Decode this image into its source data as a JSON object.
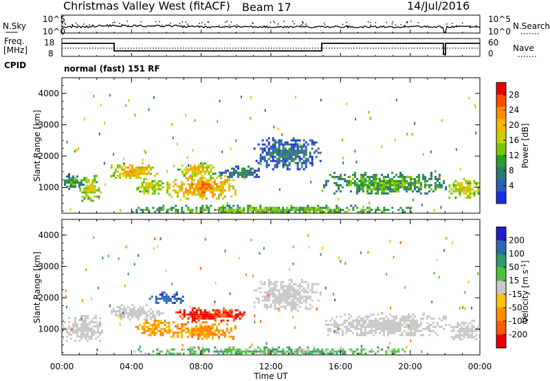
{
  "header": {
    "station": "Christmas Valley West (fitACF)",
    "beam": "Beam 17",
    "date": "14/Jul/2016"
  },
  "strip_labels": {
    "nsky": "N.Sky",
    "nsky_ticks": [
      "10^5",
      "10^0"
    ],
    "nsearch": "N.Search",
    "nsearch_ticks": [
      "10^5",
      "10^0"
    ],
    "freq_line1": "Freq.",
    "freq_line2": "[MHz]",
    "freq_ticks": [
      "18",
      "8"
    ],
    "nave": "Nave",
    "nave_ticks": [
      "60",
      "0"
    ],
    "cpid": "CPID",
    "cpid_value": "normal (fast) 151 RF"
  },
  "axes": {
    "ylabel": "Slant Range [km]",
    "xlabel": "Time UT",
    "yticks": [
      "4000",
      "3000",
      "2000",
      "1000"
    ],
    "xticks": [
      "00:00",
      "04:00",
      "08:00",
      "12:00",
      "16:00",
      "20:00",
      "00:00"
    ]
  },
  "colorbars": {
    "power": {
      "label": "Power [dB]",
      "ticks": [
        "28",
        "24",
        "20",
        "16",
        "12",
        "8",
        "4"
      ],
      "colors": [
        "#e80000",
        "#ff4b00",
        "#ff8c00",
        "#f7b400",
        "#c8d200",
        "#78c800",
        "#2a9c2a",
        "#2d7a6a",
        "#2f5cb4",
        "#1a2ee8"
      ]
    },
    "velocity": {
      "label": "Velocity [m s",
      "label_sup": "-1",
      "label_end": "]",
      "ticks": [
        "200",
        "100",
        "50",
        "15",
        "-15",
        "-50",
        "-100",
        "-200"
      ],
      "colors": [
        "#1f1fcc",
        "#2a6ab4",
        "#2f9a6a",
        "#4fc23a",
        "#c8c8c8",
        "#ffc000",
        "#ff8c00",
        "#ff5a00",
        "#e80000"
      ]
    }
  },
  "chart_data": [
    {
      "type": "heatmap",
      "title": "Power [dB]",
      "xlabel": "Time UT",
      "ylabel": "Slant Range [km]",
      "xlim_hours": [
        0,
        24
      ],
      "ylim_km": [
        180,
        4500
      ],
      "colorbar_range": [
        0,
        32
      ],
      "regions": [
        {
          "t0": 0.0,
          "t1": 1.2,
          "r0": 950,
          "r1": 1450,
          "value": 12
        },
        {
          "t0": 1.0,
          "t1": 2.3,
          "r0": 600,
          "r1": 1400,
          "value": 20
        },
        {
          "t0": 2.8,
          "t1": 5.5,
          "r0": 1300,
          "r1": 1800,
          "value": 24
        },
        {
          "t0": 4.2,
          "t1": 5.8,
          "r0": 800,
          "r1": 1300,
          "value": 20
        },
        {
          "t0": 6.0,
          "t1": 10.0,
          "r0": 650,
          "r1": 1400,
          "value": 26
        },
        {
          "t0": 6.5,
          "t1": 8.8,
          "r0": 1400,
          "r1": 1800,
          "value": 22
        },
        {
          "t0": 9.0,
          "t1": 11.5,
          "r0": 1300,
          "r1": 1700,
          "value": 10
        },
        {
          "t0": 11.0,
          "t1": 14.8,
          "r0": 1600,
          "r1": 2600,
          "value": 8
        },
        {
          "t0": 15.0,
          "t1": 22.0,
          "r0": 800,
          "r1": 1500,
          "value": 14
        },
        {
          "t0": 22.2,
          "t1": 24.0,
          "r0": 650,
          "r1": 1300,
          "value": 20
        },
        {
          "t0": 4.0,
          "t1": 20.0,
          "r0": 180,
          "r1": 450,
          "value": 16
        }
      ]
    },
    {
      "type": "heatmap",
      "title": "Velocity [m s-1]",
      "xlabel": "Time UT",
      "ylabel": "Slant Range [km]",
      "xlim_hours": [
        0,
        24
      ],
      "ylim_km": [
        180,
        4500
      ],
      "colorbar_range": [
        -250,
        250
      ],
      "regions": [
        {
          "t0": 0.0,
          "t1": 2.3,
          "r0": 600,
          "r1": 1450,
          "value": 0
        },
        {
          "t0": 2.8,
          "t1": 5.8,
          "r0": 1300,
          "r1": 1800,
          "value": 0
        },
        {
          "t0": 4.2,
          "t1": 6.2,
          "r0": 800,
          "r1": 1300,
          "value": -60
        },
        {
          "t0": 6.0,
          "t1": 10.0,
          "r0": 700,
          "r1": 1250,
          "value": -70
        },
        {
          "t0": 6.5,
          "t1": 10.5,
          "r0": 1250,
          "r1": 1700,
          "value": -200
        },
        {
          "t0": 5.0,
          "t1": 7.0,
          "r0": 1800,
          "r1": 2200,
          "value": 180
        },
        {
          "t0": 11.0,
          "t1": 14.8,
          "r0": 1600,
          "r1": 2600,
          "value": 0
        },
        {
          "t0": 15.0,
          "t1": 22.0,
          "r0": 800,
          "r1": 1500,
          "value": 0
        },
        {
          "t0": 22.2,
          "t1": 24.0,
          "r0": 650,
          "r1": 1300,
          "value": 0
        },
        {
          "t0": 4.0,
          "t1": 20.0,
          "r0": 180,
          "r1": 450,
          "value": 30
        }
      ]
    }
  ]
}
